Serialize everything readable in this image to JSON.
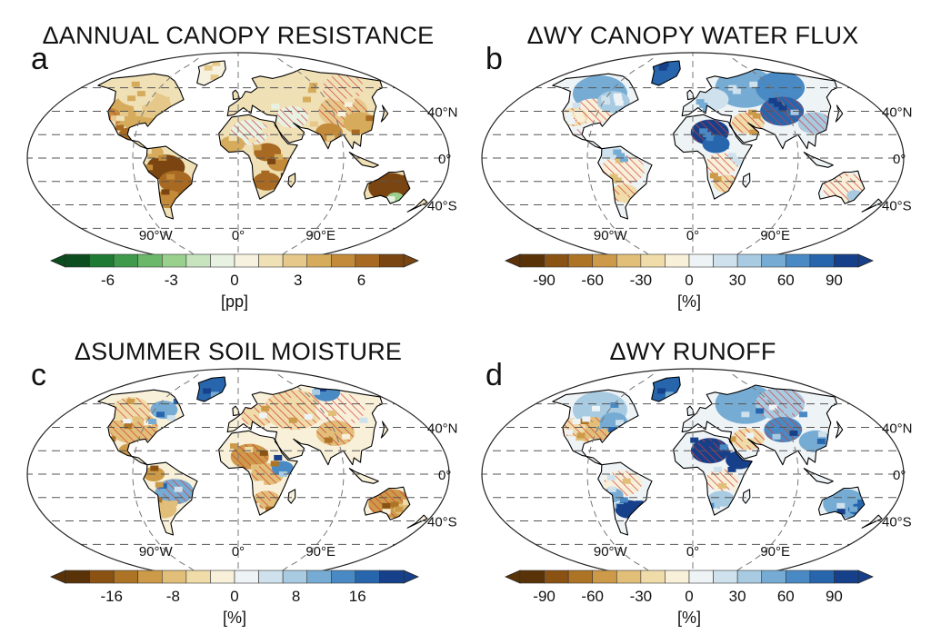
{
  "figure": {
    "panels": [
      {
        "letter": "a",
        "title": "ΔANNUAL CANOPY RESISTANCE",
        "colormap": "green-brown",
        "colorbar": {
          "ticks": [
            "-6",
            "-3",
            "0",
            "3",
            "6"
          ],
          "tick_values": [
            -6,
            -3,
            0,
            3,
            6
          ],
          "range": [
            -8,
            8
          ],
          "unit": "[pp]"
        }
      },
      {
        "letter": "b",
        "title": "ΔWY CANOPY WATER FLUX",
        "colormap": "brown-blue",
        "colorbar": {
          "ticks": [
            "-90",
            "-60",
            "-30",
            "0",
            "30",
            "60",
            "90"
          ],
          "tick_values": [
            -90,
            -60,
            -30,
            0,
            30,
            60,
            90
          ],
          "range": [
            -105,
            105
          ],
          "unit": "[%]"
        }
      },
      {
        "letter": "c",
        "title": "ΔSUMMER SOIL MOISTURE",
        "colormap": "brown-blue",
        "colorbar": {
          "ticks": [
            "-16",
            "-8",
            "0",
            "8",
            "16"
          ],
          "tick_values": [
            -16,
            -8,
            0,
            8,
            16
          ],
          "range": [
            -22,
            22
          ],
          "unit": "[%]"
        }
      },
      {
        "letter": "d",
        "title": "ΔWY RUNOFF",
        "colormap": "brown-blue",
        "colorbar": {
          "ticks": [
            "-90",
            "-60",
            "-30",
            "0",
            "30",
            "60",
            "90"
          ],
          "tick_values": [
            -90,
            -60,
            -30,
            0,
            30,
            60,
            90
          ],
          "range": [
            -105,
            105
          ],
          "unit": "[%]"
        }
      }
    ],
    "geo_labels": {
      "lat_north": "40°N",
      "lat_equator": "0°",
      "lat_south": "40°S",
      "lon_west": "90°W",
      "lon_center": "0°",
      "lon_east": "90°E"
    },
    "colors": {
      "green_brown": [
        "#0b4d1e",
        "#1f7a33",
        "#3f9a4c",
        "#6bb86b",
        "#9ad08e",
        "#c7e4be",
        "#e8f2e2",
        "#f7f2df",
        "#f0e0b6",
        "#e6c98a",
        "#d6ac5c",
        "#c38a39",
        "#a86a22",
        "#7a4511"
      ],
      "brown_blue": [
        "#5a3208",
        "#8a5314",
        "#ad7426",
        "#cc9a48",
        "#e2bf78",
        "#f0dca8",
        "#f8f0d9",
        "#eef3f6",
        "#cfe1ec",
        "#a8cbe2",
        "#76acd4",
        "#4a8ac4",
        "#2766ad",
        "#17408a"
      ],
      "hatch": "#d23a3a",
      "sea": "#ffffff",
      "outline": "#000000"
    }
  }
}
